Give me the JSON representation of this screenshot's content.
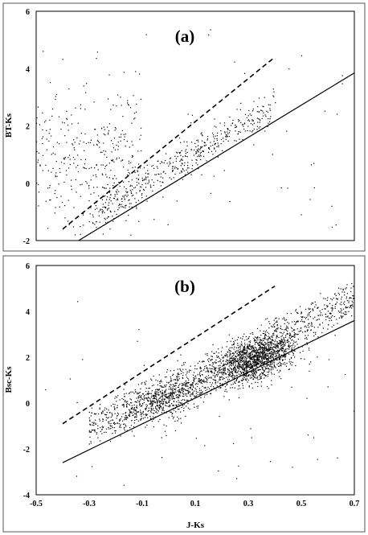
{
  "chart_data": [
    {
      "type": "scatter",
      "title": "(a)",
      "xlabel": "",
      "ylabel": "BT-Ks",
      "xlim": [
        -0.5,
        0.7
      ],
      "ylim": [
        -2,
        6
      ],
      "yticks": [
        "-2",
        "0",
        "2",
        "4",
        "6"
      ],
      "xticks": [],
      "lines": [
        {
          "style": "dashed",
          "x": [
            -0.4,
            0.4
          ],
          "y": [
            -1.6,
            4.4
          ]
        },
        {
          "style": "solid",
          "x": [
            -0.34,
            0.7
          ],
          "y": [
            -2.0,
            3.85
          ]
        }
      ],
      "clusters": [
        {
          "name": "upper-left scatter",
          "points": 330,
          "x_range": [
            -0.5,
            -0.1
          ],
          "y_center": 1.0,
          "y_spread": 1.2
        },
        {
          "name": "main sequence",
          "points": 500,
          "x_range": [
            -0.3,
            0.4
          ],
          "follows_line": "solid",
          "offset": 0.7
        },
        {
          "name": "scattered outliers",
          "points": 60,
          "x_range": [
            -0.5,
            0.7
          ],
          "y_range": [
            -2,
            5.5
          ]
        }
      ]
    },
    {
      "type": "scatter",
      "title": "(b)",
      "xlabel": "J-Ks",
      "ylabel": "Bsc-Ks",
      "xlim": [
        -0.5,
        0.7
      ],
      "ylim": [
        -4,
        6
      ],
      "yticks": [
        "-4",
        "-2",
        "0",
        "2",
        "4",
        "6"
      ],
      "xticks": [
        "-0.5",
        "-0.3",
        "-0.1",
        "0.1",
        "0.3",
        "0.5",
        "0.7"
      ],
      "lines": [
        {
          "style": "dashed",
          "x": [
            -0.4,
            0.4
          ],
          "y": [
            -0.9,
            5.1
          ]
        },
        {
          "style": "solid",
          "x": [
            -0.4,
            0.7
          ],
          "y": [
            -2.6,
            3.6
          ]
        }
      ],
      "clusters": [
        {
          "name": "dense clump",
          "points": 1400,
          "x_center": 0.33,
          "y_center": 1.9,
          "x_spread": 0.08,
          "y_spread": 0.45
        },
        {
          "name": "secondary clump",
          "points": 500,
          "x_center": 0.0,
          "y_center": 0.2,
          "x_spread": 0.08,
          "y_spread": 0.5
        },
        {
          "name": "main sequence",
          "points": 1100,
          "x_range": [
            -0.3,
            0.7
          ],
          "follows_line": "solid",
          "offset": 1.2
        },
        {
          "name": "scattered outliers",
          "points": 50,
          "x_range": [
            -0.5,
            0.7
          ],
          "y_range": [
            -4,
            5
          ]
        }
      ]
    }
  ]
}
